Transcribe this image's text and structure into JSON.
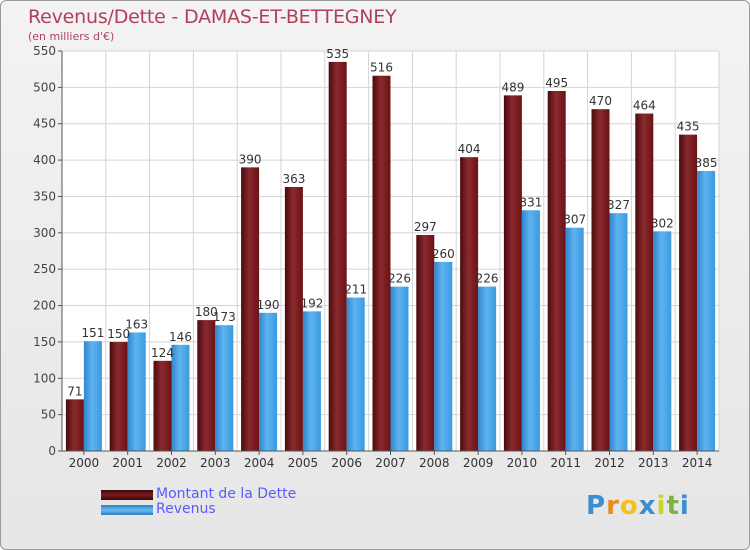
{
  "header": {
    "title": "Revenus/Dette - DAMAS-ET-BETTEGNEY",
    "subtitle": "(en milliers d'€)"
  },
  "legend": {
    "items": [
      {
        "label": "Montant de la Dette",
        "color": "#6b1216"
      },
      {
        "label": "Revenus",
        "color": "#3a9ae0"
      }
    ]
  },
  "logo": {
    "letters": [
      "P",
      "r",
      "o",
      "x",
      "i",
      "t",
      "i"
    ],
    "colors": [
      "#3b8fd1",
      "#e88c1c",
      "#f3c21a",
      "#3b8fd1",
      "#c8d62b",
      "#7cb342",
      "#3b8fd1"
    ]
  },
  "chart_data": {
    "type": "bar",
    "categories": [
      "2000",
      "2001",
      "2002",
      "2003",
      "2004",
      "2005",
      "2006",
      "2007",
      "2008",
      "2009",
      "2010",
      "2011",
      "2012",
      "2013",
      "2014"
    ],
    "series": [
      {
        "name": "Montant de la Dette",
        "color": "#6b1216",
        "values": [
          71,
          150,
          124,
          180,
          390,
          363,
          535,
          516,
          297,
          404,
          489,
          495,
          470,
          464,
          435
        ]
      },
      {
        "name": "Revenus",
        "color": "#3a9ae0",
        "values": [
          151,
          163,
          146,
          173,
          190,
          192,
          211,
          226,
          260,
          226,
          331,
          307,
          327,
          302,
          385
        ]
      }
    ],
    "ylim": [
      0,
      550
    ],
    "yticks": [
      0,
      50,
      100,
      150,
      200,
      250,
      300,
      350,
      400,
      450,
      500,
      550
    ],
    "grid": true,
    "legend_position": "bottom-left"
  }
}
